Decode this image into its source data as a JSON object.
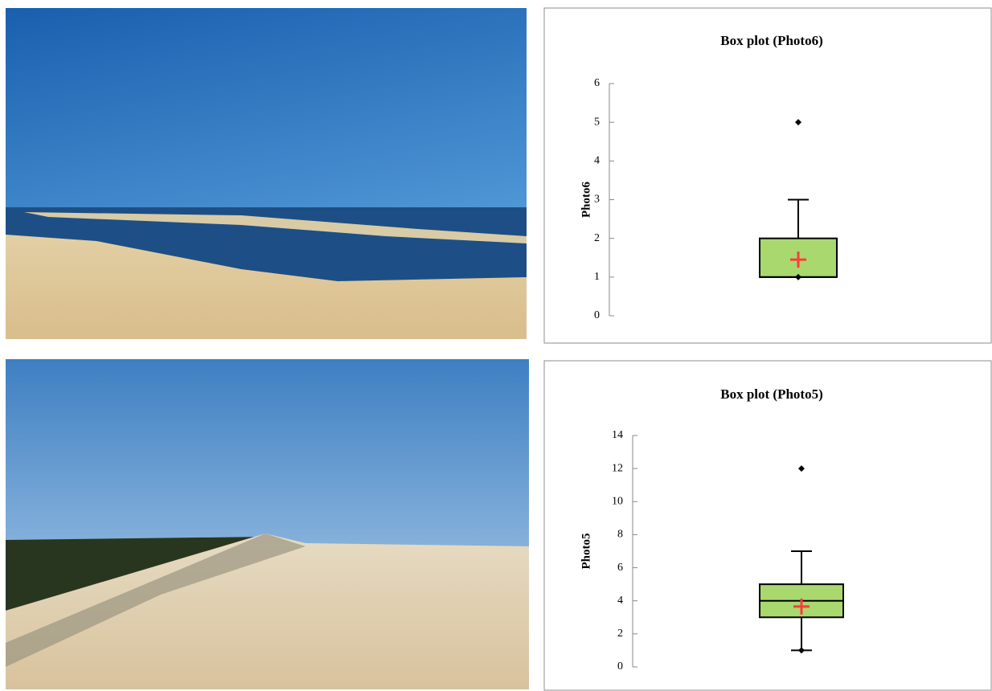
{
  "chart_data": [
    {
      "type": "box",
      "title": "Box plot (Photo6)",
      "y_label": "Photo6",
      "ylim": [
        0,
        6
      ],
      "yticks": [
        0,
        1,
        2,
        3,
        4,
        5,
        6
      ],
      "stats": {
        "min": 1,
        "q1": 1,
        "median": 1,
        "q3": 2,
        "max": 3,
        "mean": 1.45,
        "outliers": [
          5
        ]
      },
      "color": "#a9d86e",
      "mean_color": "#ff3b3b"
    },
    {
      "type": "box",
      "title": "Box plot (Photo5)",
      "y_label": "Photo5",
      "ylim": [
        0,
        14
      ],
      "yticks": [
        0,
        2,
        4,
        6,
        8,
        10,
        12,
        14
      ],
      "stats": {
        "min": 1,
        "q1": 3,
        "median": 4,
        "q3": 5,
        "max": 7,
        "mean": 3.65,
        "outliers": [
          12
        ]
      },
      "color": "#a9d86e",
      "mean_color": "#ff3b3b"
    }
  ]
}
